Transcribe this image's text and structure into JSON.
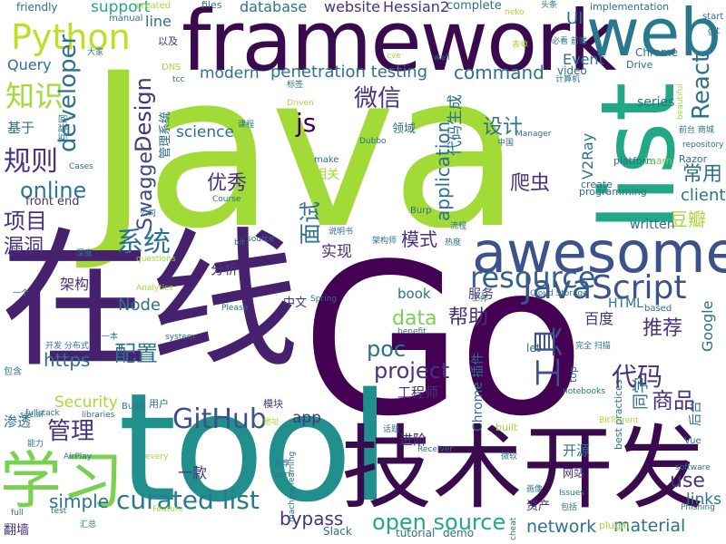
{
  "words": [
    {
      "text": "Java",
      "color": "#a2da38",
      "vertical": false
    },
    {
      "text": "Go",
      "color": "#440154",
      "vertical": false
    },
    {
      "text": "在线",
      "color": "#46216e",
      "vertical": false
    },
    {
      "text": "tool",
      "color": "#21908d",
      "vertical": false
    },
    {
      "text": "framework",
      "color": "#3a0a4f",
      "vertical": false
    },
    {
      "text": "技术开发",
      "color": "#3a0a4f",
      "vertical": false
    },
    {
      "text": "web",
      "color": "#2a788e",
      "vertical": false
    },
    {
      "text": "list",
      "color": "#22a884",
      "vertical": true
    },
    {
      "text": "awesome",
      "color": "#3b528b",
      "vertical": false
    },
    {
      "text": "学习",
      "color": "#7ad151",
      "vertical": false
    },
    {
      "text": "Python",
      "color": "#bddf26",
      "vertical": false
    },
    {
      "text": "知识",
      "color": "#a2da38",
      "vertical": false
    },
    {
      "text": "JavaScript",
      "color": "#3b528b",
      "vertical": false
    },
    {
      "text": "resource",
      "color": "#34618d",
      "vertical": false
    },
    {
      "text": "GitHub",
      "color": "#3b528b",
      "vertical": false
    },
    {
      "text": "curated list",
      "color": "#2a788e",
      "vertical": false
    },
    {
      "text": "open source",
      "color": "#22a884",
      "vertical": false
    },
    {
      "text": "project",
      "color": "#46327e",
      "vertical": false
    },
    {
      "text": "代码",
      "color": "#46327e",
      "vertical": false
    },
    {
      "text": "工具",
      "color": "#3b528b",
      "vertical": true
    },
    {
      "text": "React",
      "color": "#2c728e",
      "vertical": true
    },
    {
      "text": "developer",
      "color": "#2c728e",
      "vertical": true
    },
    {
      "text": "Design",
      "color": "#46327e",
      "vertical": true
    },
    {
      "text": "Swagger",
      "color": "#3e4989",
      "vertical": true
    },
    {
      "text": "js",
      "color": "#440154",
      "vertical": false
    },
    {
      "text": "微信",
      "color": "#46327e",
      "vertical": false
    },
    {
      "text": "设计",
      "color": "#2c728e",
      "vertical": false
    },
    {
      "text": "规则",
      "color": "#46327e",
      "vertical": false
    },
    {
      "text": "online",
      "color": "#2a788e",
      "vertical": false
    },
    {
      "text": "项目",
      "color": "#46327e",
      "vertical": false
    },
    {
      "text": "漏洞",
      "color": "#46327e",
      "vertical": false
    },
    {
      "text": "优秀",
      "color": "#46327e",
      "vertical": false
    },
    {
      "text": "系统",
      "color": "#2c728e",
      "vertical": false
    },
    {
      "text": "command",
      "color": "#2c728e",
      "vertical": false
    },
    {
      "text": "penetration testing",
      "color": "#2c728e",
      "vertical": false
    },
    {
      "text": "modern",
      "color": "#2c728e",
      "vertical": false
    },
    {
      "text": "database",
      "color": "#2c728e",
      "vertical": false
    },
    {
      "text": "website",
      "color": "#46327e",
      "vertical": false
    },
    {
      "text": "Hessian2",
      "color": "#46327e",
      "vertical": false
    },
    {
      "text": "support",
      "color": "#22a884",
      "vertical": false
    },
    {
      "text": "line",
      "color": "#2c728e",
      "vertical": false
    },
    {
      "text": "Query",
      "color": "#2c728e",
      "vertical": false
    },
    {
      "text": "science",
      "color": "#2c728e",
      "vertical": false
    },
    {
      "text": "常用",
      "color": "#2c728e",
      "vertical": false
    },
    {
      "text": "client",
      "color": "#2c728e",
      "vertical": false
    },
    {
      "text": "豆瓣",
      "color": "#a2da38",
      "vertical": false
    },
    {
      "text": "use",
      "color": "#46327e",
      "vertical": false
    },
    {
      "text": "links",
      "color": "#2c728e",
      "vertical": false
    },
    {
      "text": "商品",
      "color": "#46327e",
      "vertical": false
    },
    {
      "text": "推荐",
      "color": "#46327e",
      "vertical": false
    },
    {
      "text": "帮助",
      "color": "#46327e",
      "vertical": false
    },
    {
      "text": "data",
      "color": "#7ad151",
      "vertical": false
    },
    {
      "text": "poc",
      "color": "#2c728e",
      "vertical": false
    },
    {
      "text": "https",
      "color": "#2c728e",
      "vertical": false
    },
    {
      "text": "配置",
      "color": "#2c728e",
      "vertical": false
    },
    {
      "text": "管理",
      "color": "#46327e",
      "vertical": false
    },
    {
      "text": "bypass",
      "color": "#46327e",
      "vertical": false
    },
    {
      "text": "network",
      "color": "#2c728e",
      "vertical": false
    },
    {
      "text": "material",
      "color": "#2c728e",
      "vertical": false
    },
    {
      "text": "simple",
      "color": "#2c728e",
      "vertical": false
    },
    {
      "text": "Security",
      "color": "#a2da38",
      "vertical": false
    },
    {
      "text": "Node",
      "color": "#2c728e",
      "vertical": false
    },
    {
      "text": "实现",
      "color": "#46327e",
      "vertical": false
    },
    {
      "text": "模式",
      "color": "#46327e",
      "vertical": false
    },
    {
      "text": "面试",
      "color": "#2c728e",
      "vertical": true
    },
    {
      "text": "爬虫",
      "color": "#46327e",
      "vertical": false
    },
    {
      "text": "application",
      "color": "#2c728e",
      "vertical": true
    },
    {
      "text": "代码生成",
      "color": "#2c728e",
      "vertical": true
    },
    {
      "text": "Event",
      "color": "#2c728e",
      "vertical": false
    },
    {
      "text": "UI",
      "color": "#2c728e",
      "vertical": false
    },
    {
      "text": "V2Ray",
      "color": "#2c728e",
      "vertical": true
    },
    {
      "text": "series",
      "color": "#2c728e",
      "vertical": false
    },
    {
      "text": "written",
      "color": "#2c728e",
      "vertical": false
    },
    {
      "text": "book",
      "color": "#2c728e",
      "vertical": false
    },
    {
      "text": "服务",
      "color": "#46327e",
      "vertical": false
    },
    {
      "text": "百度",
      "color": "#46327e",
      "vertical": false
    },
    {
      "text": "工程师",
      "color": "#46327e",
      "vertical": false
    },
    {
      "text": "Google",
      "color": "#2c728e",
      "vertical": true
    },
    {
      "text": "同学",
      "color": "#2c728e",
      "vertical": true
    },
    {
      "text": "开源",
      "color": "#2c728e",
      "vertical": false
    },
    {
      "text": "进阶",
      "color": "#46327e",
      "vertical": false
    },
    {
      "text": "app",
      "color": "#46327e",
      "vertical": false
    },
    {
      "text": "分析",
      "color": "#46327e",
      "vertical": false
    },
    {
      "text": "基于",
      "color": "#2c728e",
      "vertical": false
    },
    {
      "text": "渗透",
      "color": "#2c728e",
      "vertical": false
    },
    {
      "text": "一款",
      "color": "#46327e",
      "vertical": false
    },
    {
      "text": "HTML",
      "color": "#2c728e",
      "vertical": false
    },
    {
      "text": "front end",
      "color": "#46327e",
      "vertical": false
    },
    {
      "text": "friendly",
      "color": "#2c728e",
      "vertical": false
    },
    {
      "text": "manual",
      "color": "#2c728e",
      "vertical": false
    },
    {
      "text": "created",
      "color": "#a2da38",
      "vertical": false
    },
    {
      "text": "files",
      "color": "#2c728e",
      "vertical": false
    },
    {
      "text": "complete",
      "color": "#2c728e",
      "vertical": false
    },
    {
      "text": "implementation",
      "color": "#2c728e",
      "vertical": false
    },
    {
      "text": "start",
      "color": "#2c728e",
      "vertical": false
    },
    {
      "text": "git",
      "color": "#2c728e",
      "vertical": false
    },
    {
      "text": "以及",
      "color": "#46327e",
      "vertical": false
    },
    {
      "text": "Chrome",
      "color": "#2c728e",
      "vertical": false
    },
    {
      "text": "Drive",
      "color": "#2c728e",
      "vertical": false
    },
    {
      "text": "video",
      "color": "#2c728e",
      "vertical": false
    },
    {
      "text": "platform",
      "color": "#2c728e",
      "vertical": false
    },
    {
      "text": "Learn",
      "color": "#7ad151",
      "vertical": false
    },
    {
      "text": "Razor",
      "color": "#2c728e",
      "vertical": false
    },
    {
      "text": "create",
      "color": "#2c728e",
      "vertical": false
    },
    {
      "text": "programming",
      "color": "#2c728e",
      "vertical": false
    },
    {
      "text": "repository",
      "color": "#2c728e",
      "vertical": false
    },
    {
      "text": "Manager",
      "color": "#2c728e",
      "vertical": false
    },
    {
      "text": "Dubbo",
      "color": "#2c728e",
      "vertical": false
    },
    {
      "text": "make",
      "color": "#2c728e",
      "vertical": false
    },
    {
      "text": "Course",
      "color": "#2c728e",
      "vertical": false
    },
    {
      "text": "Cases",
      "color": "#2c728e",
      "vertical": false
    },
    {
      "text": "Burp",
      "color": "#2c728e",
      "vertical": false
    },
    {
      "text": "source",
      "color": "#2c728e",
      "vertical": false
    },
    {
      "text": "questions",
      "color": "#a2da38",
      "vertical": false
    },
    {
      "text": "Analytics",
      "color": "#a2da38",
      "vertical": false
    },
    {
      "text": "Spring",
      "color": "#2c728e",
      "vertical": false
    },
    {
      "text": "Please",
      "color": "#2c728e",
      "vertical": false
    },
    {
      "text": "中文",
      "color": "#46327e",
      "vertical": false
    },
    {
      "text": "Cloud Storage",
      "color": "#2c728e",
      "vertical": false
    },
    {
      "text": "based",
      "color": "#2c728e",
      "vertical": false
    },
    {
      "text": "let",
      "color": "#2c728e",
      "vertical": false
    },
    {
      "text": "system",
      "color": "#2c728e",
      "vertical": false
    },
    {
      "text": "benefit",
      "color": "#2c728e",
      "vertical": false
    },
    {
      "text": "best practices",
      "color": "#2c728e",
      "vertical": true
    },
    {
      "text": "notebooks",
      "color": "#2c728e",
      "vertical": false
    },
    {
      "text": "Chrome 插件",
      "color": "#2c728e",
      "vertical": true
    },
    {
      "text": "Build",
      "color": "#2c728e",
      "vertical": false
    },
    {
      "text": "fullstack",
      "color": "#2c728e",
      "vertical": false
    },
    {
      "text": "libraries",
      "color": "#2c728e",
      "vertical": false
    },
    {
      "text": "social",
      "color": "#2c728e",
      "vertical": false
    },
    {
      "text": "AirPlay",
      "color": "#2c728e",
      "vertical": false
    },
    {
      "text": "machine learning",
      "color": "#2c728e",
      "vertical": true
    },
    {
      "text": "built",
      "color": "#a2da38",
      "vertical": false
    },
    {
      "text": "BitTorrent",
      "color": "#a2da38",
      "vertical": false
    },
    {
      "text": "Receiver",
      "color": "#2c728e",
      "vertical": false
    },
    {
      "text": "Issues",
      "color": "#2c728e",
      "vertical": false
    },
    {
      "text": "software",
      "color": "#2c728e",
      "vertical": false
    },
    {
      "text": "Phishing",
      "color": "#2c728e",
      "vertical": false
    },
    {
      "text": "Vue",
      "color": "#2c728e",
      "vertical": false
    },
    {
      "text": "plugin",
      "color": "#a2da38",
      "vertical": false
    },
    {
      "text": "tutorial",
      "color": "#2c728e",
      "vertical": false
    },
    {
      "text": "demo",
      "color": "#2c728e",
      "vertical": false
    },
    {
      "text": "Slack",
      "color": "#2c728e",
      "vertical": false
    },
    {
      "text": "Feature",
      "color": "#a2da38",
      "vertical": false
    },
    {
      "text": "full",
      "color": "#2c728e",
      "vertical": false
    },
    {
      "text": "test",
      "color": "#2c728e",
      "vertical": false
    },
    {
      "text": "every",
      "color": "#a2da38",
      "vertical": false
    },
    {
      "text": "csrf",
      "color": "#2c728e",
      "vertical": false
    },
    {
      "text": "翻墙",
      "color": "#46327e",
      "vertical": false
    },
    {
      "text": "汇总",
      "color": "#2c728e",
      "vertical": false
    },
    {
      "text": "资产",
      "color": "#46327e",
      "vertical": false
    },
    {
      "text": "包括",
      "color": "#2c728e",
      "vertical": false
    },
    {
      "text": "网站",
      "color": "#46327e",
      "vertical": false
    },
    {
      "text": "后台",
      "color": "#2c728e",
      "vertical": true
    },
    {
      "text": "微软",
      "color": "#2c728e",
      "vertical": false
    },
    {
      "text": "话题",
      "color": "#2c728e",
      "vertical": false
    },
    {
      "text": "分享",
      "color": "#2c728e",
      "vertical": false
    },
    {
      "text": "地址",
      "color": "#a2da38",
      "vertical": false
    },
    {
      "text": "模块",
      "color": "#46327e",
      "vertical": false
    },
    {
      "text": "用户",
      "color": "#2c728e",
      "vertical": false
    },
    {
      "text": "能力",
      "color": "#2c728e",
      "vertical": false
    },
    {
      "text": "包含",
      "color": "#2c728e",
      "vertical": false
    },
    {
      "text": "开发 分布式",
      "color": "#2c728e",
      "vertical": false
    },
    {
      "text": "一本",
      "color": "#2c728e",
      "vertical": false
    },
    {
      "text": "架构",
      "color": "#46327e",
      "vertical": false
    },
    {
      "text": "一个",
      "color": "#2c728e",
      "vertical": false
    },
    {
      "text": "深度",
      "color": "#2c728e",
      "vertical": false
    },
    {
      "text": "相关",
      "color": "#a2da38",
      "vertical": false
    },
    {
      "text": "领域",
      "color": "#2c728e",
      "vertical": false
    },
    {
      "text": "管理系统",
      "color": "#2c728e",
      "vertical": true
    },
    {
      "text": "互联网",
      "color": "#2c728e",
      "vertical": true
    },
    {
      "text": "大家",
      "color": "#2c728e",
      "vertical": false
    },
    {
      "text": "DNS",
      "color": "#a2da38",
      "vertical": false
    },
    {
      "text": "tcc",
      "color": "#2c728e",
      "vertical": false
    },
    {
      "text": "标签",
      "color": "#2c728e",
      "vertical": false
    },
    {
      "text": "Driven",
      "color": "#a2da38",
      "vertical": false
    },
    {
      "text": "课程",
      "color": "#2c728e",
      "vertical": false
    },
    {
      "text": "中国",
      "color": "#2c728e",
      "vertical": false
    },
    {
      "text": "公司",
      "color": "#2c728e",
      "vertical": false
    },
    {
      "text": "说明书",
      "color": "#2c728e",
      "vertical": false
    },
    {
      "text": "架构师",
      "color": "#2c728e",
      "vertical": false
    },
    {
      "text": "热度",
      "color": "#2c728e",
      "vertical": false
    },
    {
      "text": "流程",
      "color": "#2c728e",
      "vertical": false
    },
    {
      "text": "工作",
      "color": "#2c728e",
      "vertical": false
    },
    {
      "text": "完全 扫描",
      "color": "#2c728e",
      "vertical": false
    },
    {
      "text": "画像",
      "color": "#2c728e",
      "vertical": false
    },
    {
      "text": "必看 前端",
      "color": "#2c728e",
      "vertical": false
    },
    {
      "text": "表单",
      "color": "#a2da38",
      "vertical": false
    },
    {
      "text": "neko",
      "color": "#a2da38",
      "vertical": false
    },
    {
      "text": "头条",
      "color": "#2c728e",
      "vertical": false
    },
    {
      "text": "cve",
      "color": "#a2da38",
      "vertical": false
    },
    {
      "text": "well",
      "color": "#2c728e",
      "vertical": false
    },
    {
      "text": "计算机",
      "color": "#2c728e",
      "vertical": false
    },
    {
      "text": "前台 商城",
      "color": "#2c728e",
      "vertical": false
    },
    {
      "text": "beautiful",
      "color": "#a2da38",
      "vertical": true
    },
    {
      "text": "bit",
      "color": "#2c728e",
      "vertical": false
    },
    {
      "text": "top",
      "color": "#2c728e",
      "vertical": true
    },
    {
      "text": "cheat",
      "color": "#2c728e",
      "vertical": true
    }
  ]
}
